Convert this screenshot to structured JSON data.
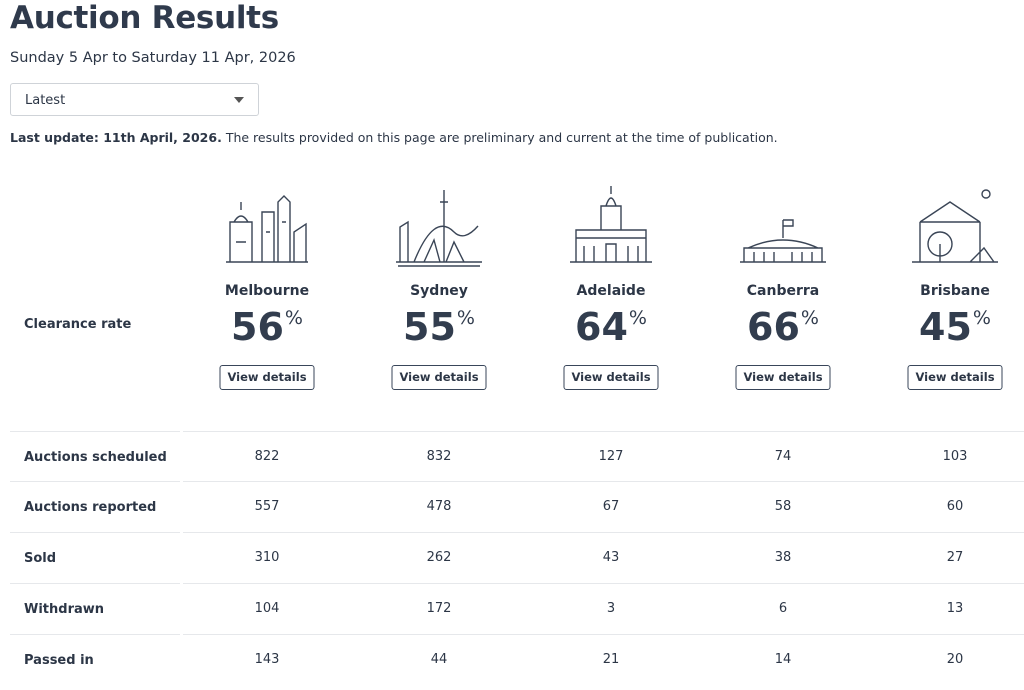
{
  "header": {
    "title": "Auction Results",
    "subtitle": "Sunday 5 Apr to Saturday 11 Apr, 2026"
  },
  "dropdown": {
    "selected": "Latest"
  },
  "update": {
    "bold": "Last update: 11th April, 2026.",
    "text": "The results provided on this page are preliminary and current at the time of publication."
  },
  "clearance_label": "Clearance rate",
  "cities": [
    {
      "name": "Melbourne",
      "clearance": 56,
      "unit": "%",
      "button": "View details"
    },
    {
      "name": "Sydney",
      "clearance": 55,
      "unit": "%",
      "button": "View details"
    },
    {
      "name": "Adelaide",
      "clearance": 64,
      "unit": "%",
      "button": "View details"
    },
    {
      "name": "Canberra",
      "clearance": 66,
      "unit": "%",
      "button": "View details"
    },
    {
      "name": "Brisbane",
      "clearance": 45,
      "unit": "%",
      "button": "View details"
    }
  ],
  "table": {
    "rows": [
      {
        "label": "Auctions scheduled",
        "values": [
          822,
          832,
          127,
          74,
          103
        ]
      },
      {
        "label": "Auctions reported",
        "values": [
          557,
          478,
          67,
          58,
          60
        ]
      },
      {
        "label": "Sold",
        "values": [
          310,
          262,
          43,
          38,
          27
        ]
      },
      {
        "label": "Withdrawn",
        "values": [
          104,
          172,
          3,
          6,
          13
        ]
      },
      {
        "label": "Passed in",
        "values": [
          143,
          44,
          21,
          14,
          20
        ]
      }
    ]
  }
}
